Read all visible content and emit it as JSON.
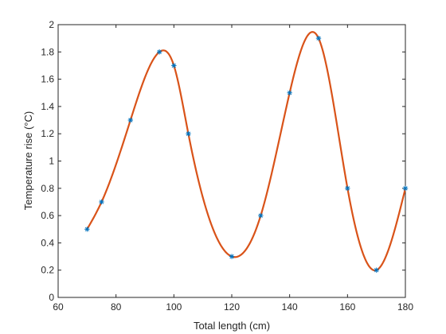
{
  "chart_data": {
    "type": "line",
    "title": "",
    "xlabel": "Total length (cm)",
    "ylabel": "Temperature rise (°C)",
    "xlim": [
      60,
      180
    ],
    "ylim": [
      0,
      2
    ],
    "xticks": [
      60,
      80,
      100,
      120,
      140,
      160,
      180
    ],
    "yticks": [
      0,
      0.2,
      0.4,
      0.6,
      0.8,
      1,
      1.2,
      1.4,
      1.6,
      1.8,
      2
    ],
    "xtick_labels": [
      "60",
      "80",
      "100",
      "120",
      "140",
      "160",
      "180"
    ],
    "ytick_labels": [
      "0",
      "0.2",
      "0.4",
      "0.6",
      "0.8",
      "1",
      "1.2",
      "1.4",
      "1.6",
      "1.8",
      "2"
    ],
    "grid": false,
    "series": [
      {
        "kind": "markers",
        "marker": "asterisk",
        "color": "#0072bd",
        "x": [
          70,
          75,
          85,
          95,
          100,
          105,
          120,
          130,
          140,
          150,
          160,
          170,
          180
        ],
        "y": [
          0.5,
          0.7,
          1.3,
          1.8,
          1.7,
          1.2,
          0.3,
          0.6,
          1.5,
          1.9,
          0.8,
          0.2,
          0.8
        ]
      },
      {
        "kind": "smooth-line",
        "color": "#d95319",
        "x": [
          70,
          75,
          85,
          95,
          100,
          105,
          120,
          130,
          140,
          150,
          160,
          170,
          180
        ],
        "y": [
          0.5,
          0.7,
          1.3,
          1.8,
          1.7,
          1.2,
          0.3,
          0.6,
          1.5,
          1.9,
          0.8,
          0.2,
          0.8
        ]
      }
    ]
  }
}
